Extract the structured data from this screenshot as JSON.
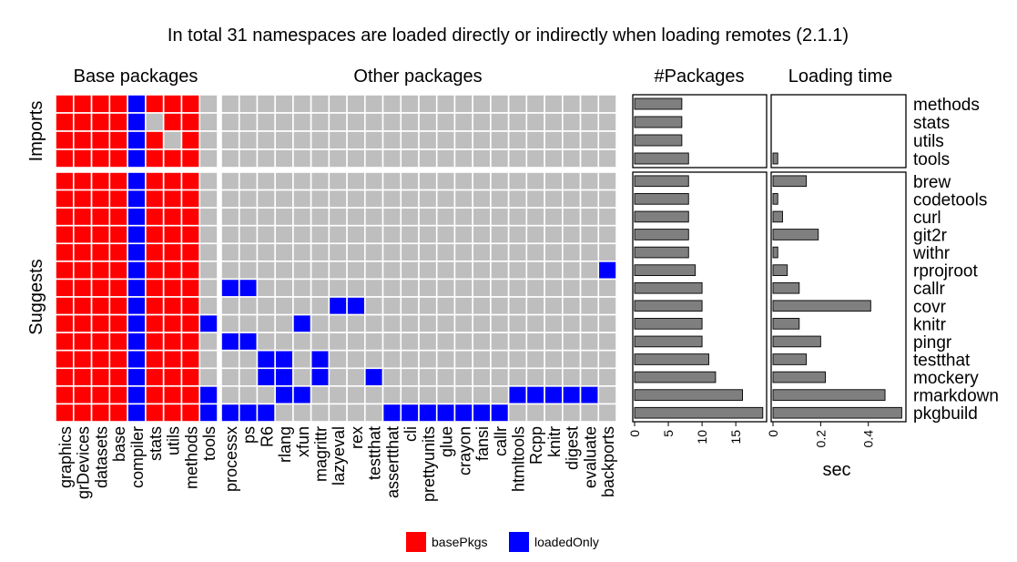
{
  "chart_data": {
    "type": "heatmap",
    "title": "In total 31 namespaces are loaded directly or indirectly when loading remotes (2.1.1)",
    "facet_titles": {
      "base": "Base packages",
      "other": "Other packages",
      "npkg": "#Packages",
      "time": "Loading time"
    },
    "row_groups": [
      {
        "label": "Imports",
        "rows": [
          "methods",
          "stats",
          "utils",
          "tools"
        ]
      },
      {
        "label": "Suggests",
        "rows": [
          "brew",
          "codetools",
          "curl",
          "git2r",
          "withr",
          "rprojroot",
          "callr",
          "covr",
          "knitr",
          "pingr",
          "testthat",
          "mockery",
          "rmarkdown",
          "pkgbuild"
        ]
      }
    ],
    "base_columns": [
      "graphics",
      "grDevices",
      "datasets",
      "base",
      "compiler",
      "stats",
      "utils",
      "methods",
      "tools"
    ],
    "other_columns": [
      "processx",
      "ps",
      "R6",
      "rlang",
      "xfun",
      "magrittr",
      "lazyeval",
      "rex",
      "testthat",
      "assertthat",
      "cli",
      "prettyunits",
      "glue",
      "crayon",
      "fansi",
      "callr",
      "htmltools",
      "Rcpp",
      "knitr",
      "digest",
      "evaluate",
      "backports"
    ],
    "cell_codes": {
      "0": "not loaded",
      "1": "basePkgs",
      "2": "loadedOnly"
    },
    "base_matrix": [
      [
        1,
        1,
        1,
        1,
        2,
        1,
        1,
        1,
        0
      ],
      [
        1,
        1,
        1,
        1,
        2,
        0,
        1,
        1,
        0
      ],
      [
        1,
        1,
        1,
        1,
        2,
        1,
        0,
        1,
        0
      ],
      [
        1,
        1,
        1,
        1,
        2,
        1,
        1,
        1,
        0
      ],
      [
        1,
        1,
        1,
        1,
        2,
        1,
        1,
        1,
        0
      ],
      [
        1,
        1,
        1,
        1,
        2,
        1,
        1,
        1,
        0
      ],
      [
        1,
        1,
        1,
        1,
        2,
        1,
        1,
        1,
        0
      ],
      [
        1,
        1,
        1,
        1,
        2,
        1,
        1,
        1,
        0
      ],
      [
        1,
        1,
        1,
        1,
        2,
        1,
        1,
        1,
        0
      ],
      [
        1,
        1,
        1,
        1,
        2,
        1,
        1,
        1,
        0
      ],
      [
        1,
        1,
        1,
        1,
        2,
        1,
        1,
        1,
        0
      ],
      [
        1,
        1,
        1,
        1,
        2,
        1,
        1,
        1,
        0
      ],
      [
        1,
        1,
        1,
        1,
        2,
        1,
        1,
        1,
        2
      ],
      [
        1,
        1,
        1,
        1,
        2,
        1,
        1,
        1,
        0
      ],
      [
        1,
        1,
        1,
        1,
        2,
        1,
        1,
        1,
        0
      ],
      [
        1,
        1,
        1,
        1,
        2,
        1,
        1,
        1,
        0
      ],
      [
        1,
        1,
        1,
        1,
        2,
        1,
        1,
        1,
        2
      ],
      [
        1,
        1,
        1,
        1,
        2,
        1,
        1,
        1,
        2
      ]
    ],
    "other_matrix": [
      [
        0,
        0,
        0,
        0,
        0,
        0,
        0,
        0,
        0,
        0,
        0,
        0,
        0,
        0,
        0,
        0,
        0,
        0,
        0,
        0,
        0,
        0
      ],
      [
        0,
        0,
        0,
        0,
        0,
        0,
        0,
        0,
        0,
        0,
        0,
        0,
        0,
        0,
        0,
        0,
        0,
        0,
        0,
        0,
        0,
        0
      ],
      [
        0,
        0,
        0,
        0,
        0,
        0,
        0,
        0,
        0,
        0,
        0,
        0,
        0,
        0,
        0,
        0,
        0,
        0,
        0,
        0,
        0,
        0
      ],
      [
        0,
        0,
        0,
        0,
        0,
        0,
        0,
        0,
        0,
        0,
        0,
        0,
        0,
        0,
        0,
        0,
        0,
        0,
        0,
        0,
        0,
        0
      ],
      [
        0,
        0,
        0,
        0,
        0,
        0,
        0,
        0,
        0,
        0,
        0,
        0,
        0,
        0,
        0,
        0,
        0,
        0,
        0,
        0,
        0,
        0
      ],
      [
        0,
        0,
        0,
        0,
        0,
        0,
        0,
        0,
        0,
        0,
        0,
        0,
        0,
        0,
        0,
        0,
        0,
        0,
        0,
        0,
        0,
        0
      ],
      [
        0,
        0,
        0,
        0,
        0,
        0,
        0,
        0,
        0,
        0,
        0,
        0,
        0,
        0,
        0,
        0,
        0,
        0,
        0,
        0,
        0,
        0
      ],
      [
        0,
        0,
        0,
        0,
        0,
        0,
        0,
        0,
        0,
        0,
        0,
        0,
        0,
        0,
        0,
        0,
        0,
        0,
        0,
        0,
        0,
        0
      ],
      [
        0,
        0,
        0,
        0,
        0,
        0,
        0,
        0,
        0,
        0,
        0,
        0,
        0,
        0,
        0,
        0,
        0,
        0,
        0,
        0,
        0,
        0
      ],
      [
        0,
        0,
        0,
        0,
        0,
        0,
        0,
        0,
        0,
        0,
        0,
        0,
        0,
        0,
        0,
        0,
        0,
        0,
        0,
        0,
        0,
        2
      ],
      [
        2,
        2,
        0,
        0,
        0,
        0,
        0,
        0,
        0,
        0,
        0,
        0,
        0,
        0,
        0,
        0,
        0,
        0,
        0,
        0,
        0,
        0
      ],
      [
        0,
        0,
        0,
        0,
        0,
        0,
        2,
        2,
        0,
        0,
        0,
        0,
        0,
        0,
        0,
        0,
        0,
        0,
        0,
        0,
        0,
        0
      ],
      [
        0,
        0,
        0,
        0,
        2,
        0,
        0,
        0,
        0,
        0,
        0,
        0,
        0,
        0,
        0,
        0,
        0,
        0,
        0,
        0,
        0,
        0
      ],
      [
        2,
        2,
        0,
        0,
        0,
        0,
        0,
        0,
        0,
        0,
        0,
        0,
        0,
        0,
        0,
        0,
        0,
        0,
        0,
        0,
        0,
        0
      ],
      [
        0,
        0,
        2,
        2,
        0,
        2,
        0,
        0,
        0,
        0,
        0,
        0,
        0,
        0,
        0,
        0,
        0,
        0,
        0,
        0,
        0,
        0
      ],
      [
        0,
        0,
        2,
        2,
        0,
        2,
        0,
        0,
        2,
        0,
        0,
        0,
        0,
        0,
        0,
        0,
        0,
        0,
        0,
        0,
        0,
        0
      ],
      [
        0,
        0,
        0,
        2,
        2,
        0,
        0,
        0,
        0,
        0,
        0,
        0,
        0,
        0,
        0,
        0,
        2,
        2,
        2,
        2,
        2,
        0
      ],
      [
        2,
        2,
        2,
        0,
        0,
        0,
        0,
        0,
        0,
        2,
        2,
        2,
        2,
        2,
        2,
        2,
        0,
        0,
        0,
        0,
        0,
        0
      ]
    ],
    "npackages": [
      7,
      7,
      7,
      8,
      8,
      8,
      8,
      8,
      8,
      9,
      10,
      10,
      10,
      10,
      11,
      12,
      16,
      19
    ],
    "npackages_xlim": [
      0,
      19.3
    ],
    "npackages_ticks": [
      0,
      5,
      10,
      15
    ],
    "loading_time": [
      0.0,
      0.0,
      0.0,
      0.02,
      0.14,
      0.02,
      0.04,
      0.19,
      0.02,
      0.06,
      0.11,
      0.41,
      0.11,
      0.2,
      0.14,
      0.22,
      0.47,
      0.54
    ],
    "loading_time_xlim": [
      0,
      0.55
    ],
    "loading_time_ticks": [
      "0",
      "0.2",
      "0.4"
    ],
    "loading_time_xlabel": "sec",
    "legend": [
      {
        "label": "basePkgs",
        "color": "#ff0000"
      },
      {
        "label": "loadedOnly",
        "color": "#0000ff"
      }
    ],
    "legend_position": "bottom"
  },
  "colors": {
    "empty": "#bebebe",
    "bar": "#7f7f7f",
    "grid": "#ffffff"
  }
}
